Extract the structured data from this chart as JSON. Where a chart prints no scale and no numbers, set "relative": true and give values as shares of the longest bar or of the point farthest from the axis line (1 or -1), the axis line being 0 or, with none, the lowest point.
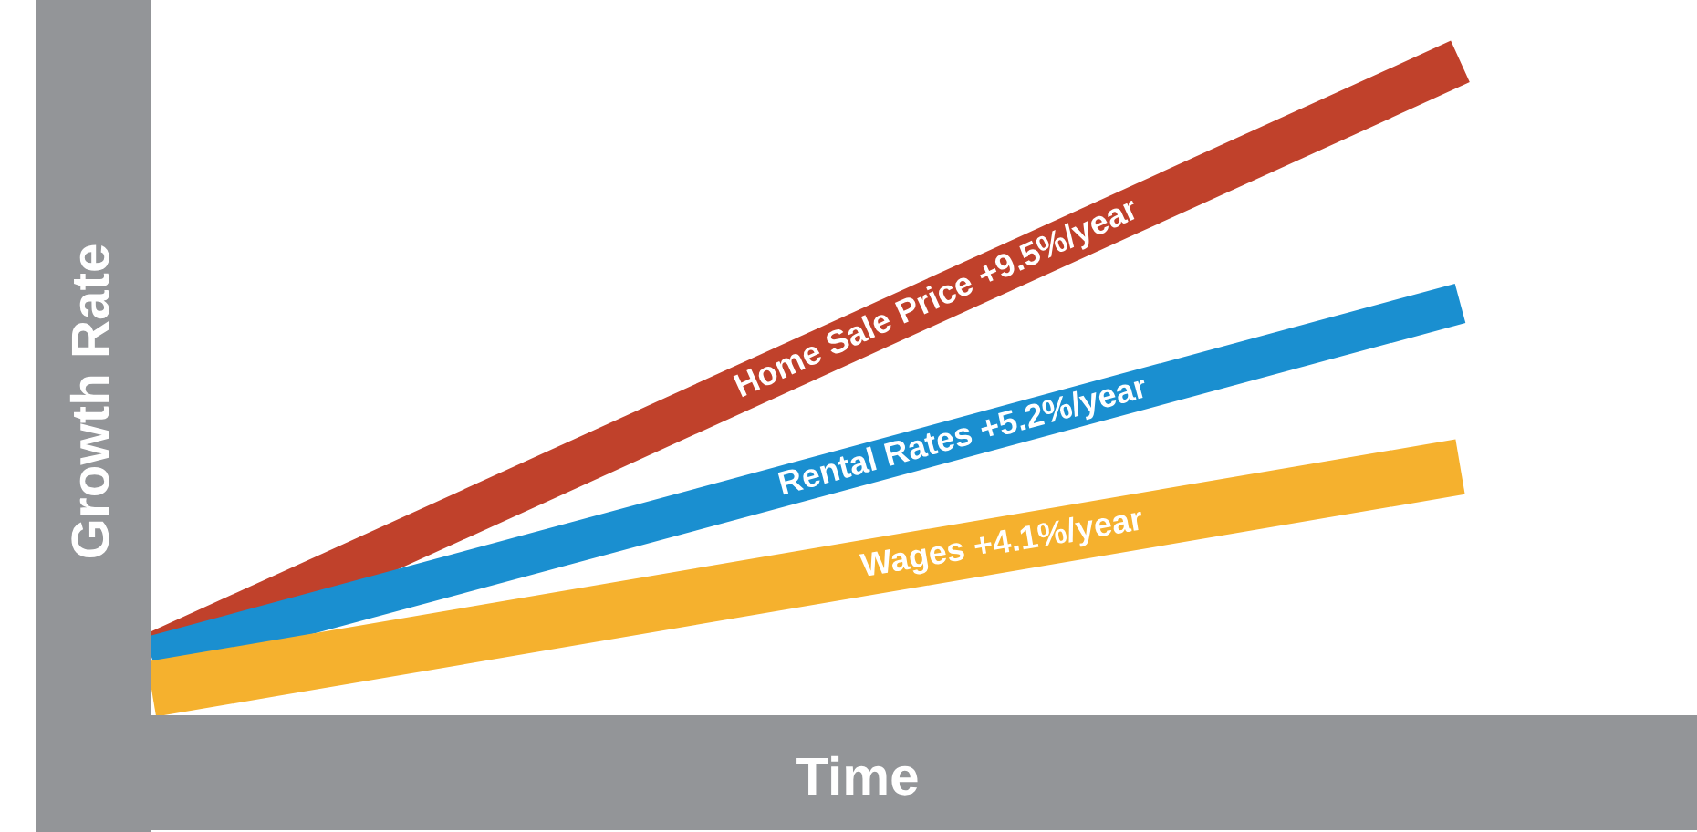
{
  "chart_data": {
    "type": "line",
    "relative": true,
    "xlabel": "Time",
    "ylabel": "Growth Rate",
    "categories": [
      null,
      null
    ],
    "series": [
      {
        "name": "Home Sale Price +9.5%/year",
        "color": "#c0412b",
        "values": [
          0.09,
          1
        ]
      },
      {
        "name": "Rental Rates +5.2%/year",
        "color": "#1a8fd0",
        "values": [
          0.09,
          0.63
        ]
      },
      {
        "name": "Wages +4.1%/year",
        "color": "#f5b12e",
        "values": [
          0.04,
          0.38
        ]
      }
    ]
  }
}
